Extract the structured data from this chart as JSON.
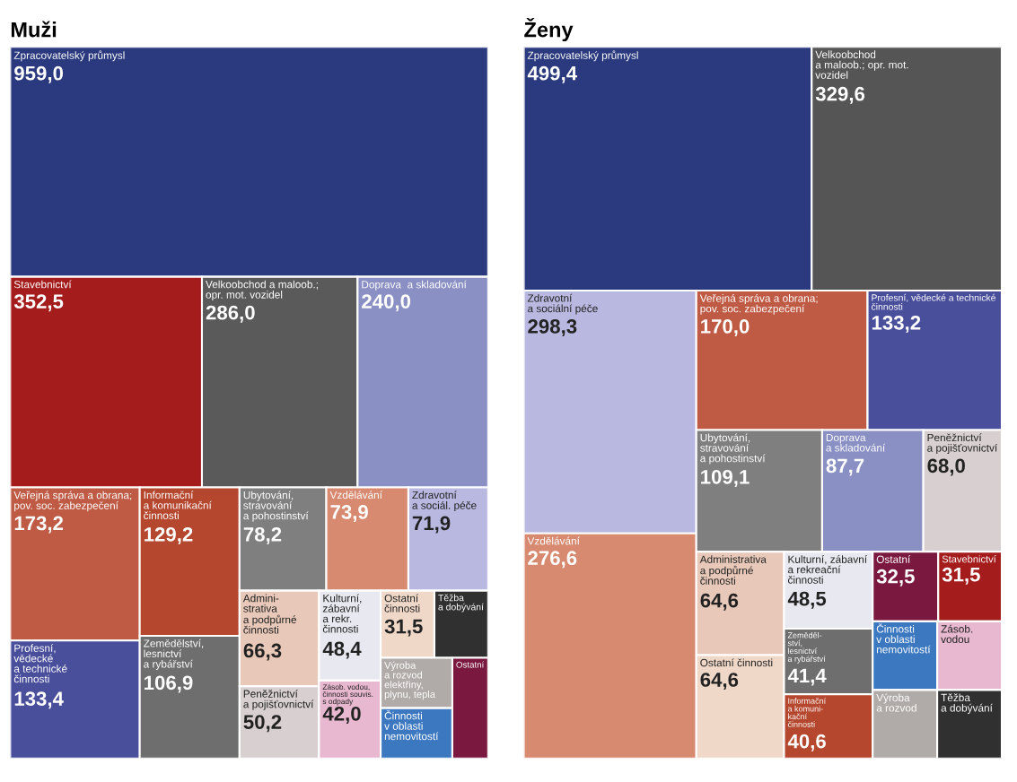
{
  "chart_data": [
    {
      "type": "other",
      "title": "Muži",
      "categories": [
        "Zpracovatelský průmysl",
        "Stavebnictví",
        "Velkoobchod a maloob.;\nopr. mot. vozidel",
        "Doprava  a skladování",
        "Veřejná správa a obrana;\npov. soc. zabezpečení",
        "Profesní,\nvědecké\na technické\nčinnosti",
        "Informační\na komunikační\nčinnosti",
        "Zemědělství,\nlesnictví\na rybářství",
        "Ubytování,\nstravování\na pohostinství",
        "Vzdělávání",
        "Zdravotní\na sociál. péče",
        "Admini-\nstrativa\na podpůrné\nčinnosti",
        "Peněžnictví\na pojišťovnictví",
        "Kulturní,\nzábavní\na rekr.\nčinnosti",
        "Zásob. vodou,\nčinnosti souvis.\ns odpady",
        "Ostatní\nčinnosti",
        "Těžba\na dobývání",
        "Výroba\na rozvod\nelektřiny,\nplynu, tepla",
        "Činnosti\nv oblasti\nnemovitostí",
        "Ostatní"
      ],
      "values": [
        959.0,
        352.5,
        286.0,
        240.0,
        173.2,
        133.4,
        129.2,
        106.9,
        78.2,
        73.9,
        71.9,
        66.3,
        50.2,
        48.4,
        42.0,
        31.5,
        null,
        null,
        null,
        null
      ],
      "value_labels": [
        "959,0",
        "352,5",
        "286,0",
        "240,0",
        "173,2",
        "133,4",
        "129,2",
        "106,9",
        "78,2",
        "73,9",
        "71,9",
        "66,3",
        "50,2",
        "48,4",
        "42,0",
        "31,5",
        null,
        null,
        null,
        null
      ],
      "colors": [
        "#2b3a7e",
        "#a51c1c",
        "#5a5a5a",
        "#8a8fc4",
        "#bf5a45",
        "#4a4f9c",
        "#b5472e",
        "#6e6e6e",
        "#7f7f7f",
        "#d88a70",
        "#b8b8e0",
        "#e8c8b8",
        "#d8d0d0",
        "#e8e8f0",
        "#e8b8d0",
        "#f0d8c8",
        "#303030",
        "#b0aaa8",
        "#3c78c0",
        "#7a1840"
      ]
    },
    {
      "type": "other",
      "title": "Ženy",
      "categories": [
        "Zpracovatelský průmysl",
        "Velkoobchod\na maloob.; opr. mot.\nvozidel",
        "Zdravotní\na sociální péče",
        "Vzdělávání",
        "Veřejná správa a obrana;\npov. soc. zabezpečení",
        "Profesní, vědecké a technické\nčinnosti",
        "Ubytování,\nstravování\na pohostinství",
        "Doprava\na skladování",
        "Peněžnictví\na pojišťovnictví",
        "Administrativa\na podpůrné\nčinnosti",
        "Ostatní činnosti",
        "Kulturní, zábavní\na rekreační\nčinnosti",
        "Zeměděl-\nství,\nlesnictví\na rybářství",
        "Informační\na komuni-\nkační\nčinnosti",
        "Ostatní",
        "Stavebnictví",
        "Činnosti\nv oblasti\nnemovitostí",
        "Zásob.\nvodou",
        "Výroba\na rozvod",
        "Těžba\na dobývání"
      ],
      "values": [
        499.4,
        329.6,
        298.3,
        276.6,
        170.0,
        133.2,
        109.1,
        87.7,
        68.0,
        64.6,
        64.6,
        48.5,
        41.4,
        40.6,
        32.5,
        31.5,
        null,
        null,
        null,
        null
      ],
      "value_labels": [
        "499,4",
        "329,6",
        "298,3",
        "276,6",
        "170,0",
        "133,2",
        "109,1",
        "87,7",
        "68,0",
        "64,6",
        "64,6",
        "48,5",
        "41,4",
        "40,6",
        "32,5",
        "31,5",
        null,
        null,
        null,
        null
      ],
      "colors": [
        "#2b3a7e",
        "#555555",
        "#b8b8e0",
        "#d88a70",
        "#bf5a45",
        "#4a4f9c",
        "#7f7f7f",
        "#8a8fc4",
        "#d8d0d0",
        "#e8c8b8",
        "#f0d8c8",
        "#e8e8f0",
        "#6e6e6e",
        "#b5472e",
        "#7a1840",
        "#a51c1c",
        "#3c78c0",
        "#e8b8d0",
        "#b0aaa8",
        "#303030"
      ]
    }
  ]
}
